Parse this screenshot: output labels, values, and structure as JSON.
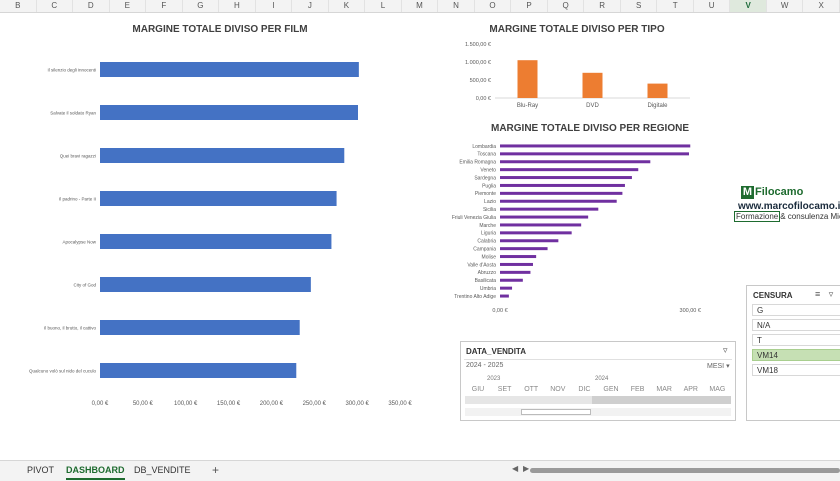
{
  "column_headers": [
    "B",
    "C",
    "D",
    "E",
    "F",
    "G",
    "H",
    "I",
    "J",
    "K",
    "L",
    "M",
    "N",
    "O",
    "P",
    "Q",
    "R",
    "S",
    "T",
    "U",
    "V",
    "W",
    "X"
  ],
  "selected_column": "V",
  "accent_color": "#4472c4",
  "chart_data": [
    {
      "type": "bar",
      "orientation": "horizontal",
      "title": "MARGINE TOTALE DIVISO PER FILM",
      "categories": [
        "Il silenzio degli innocenti",
        "Salvate il soldato Ryan",
        "Quei bravi ragazzi",
        "Il padrino - Parte II",
        "Apocalypse Now",
        "City of God",
        "Il buono, il brutto, il cattivo",
        "Qualcuno volò sul nido del cuculo"
      ],
      "values": [
        302,
        301,
        285,
        276,
        270,
        246,
        233,
        229
      ],
      "xlim": [
        0,
        350
      ],
      "xticks": [
        "0,00 €",
        "50,00 €",
        "100,00 €",
        "150,00 €",
        "200,00 €",
        "250,00 €",
        "300,00 €",
        "350,00 €"
      ],
      "color": "#4472c4"
    },
    {
      "type": "bar",
      "title": "MARGINE TOTALE DIVISO PER TIPO",
      "categories": [
        "Blu-Ray",
        "DVD",
        "Digitale"
      ],
      "values": [
        1050,
        700,
        400
      ],
      "ylim": [
        0,
        1500
      ],
      "yticks": [
        "0,00 €",
        "500,00 €",
        "1.000,00 €",
        "1.500,00 €"
      ],
      "color": "#ed7d31"
    },
    {
      "type": "bar",
      "orientation": "horizontal",
      "title": "MARGINE TOTALE DIVISO PER REGIONE",
      "categories": [
        "Lombardia",
        "Toscana",
        "Emilia Romagna",
        "Veneto",
        "Sardegna",
        "Puglia",
        "Piemonte",
        "Lazio",
        "Sicilia",
        "Friuli Venezia Giulia",
        "Marche",
        "Liguria",
        "Calabria",
        "Campania",
        "Molise",
        "Valle d'Aosta",
        "Abruzzo",
        "Basilicata",
        "Umbria",
        "Trentino Alto Adige"
      ],
      "values": [
        300,
        298,
        237,
        218,
        208,
        197,
        193,
        184,
        155,
        139,
        128,
        113,
        92,
        75,
        57,
        52,
        48,
        36,
        19,
        14
      ],
      "xlim": [
        0,
        380
      ],
      "xticks": [
        "0,00 €",
        "300,00 €"
      ],
      "color": "#7030a0"
    }
  ],
  "logo": {
    "letter": "M",
    "name": "Filocamo",
    "url": "www.marcofilocamo.it",
    "tagline_boxed": "Formazione",
    "tagline_rest": "& consulenza Microsof"
  },
  "slicer": {
    "title": "CENSURA",
    "items": [
      "G",
      "N/A",
      "T",
      "VM14",
      "VM18"
    ],
    "selected": "VM14",
    "selected_color": "#c6e0b4"
  },
  "timeline": {
    "title": "DATA_VENDITA",
    "range": "2024 - 2025",
    "level": "MESI",
    "years": [
      "2023",
      "2024"
    ],
    "months": [
      "GIU",
      "SET",
      "OTT",
      "NOV",
      "DIC",
      "GEN",
      "FEB",
      "MAR",
      "APR",
      "MAG"
    ]
  },
  "sheet_tabs": [
    "PIVOT",
    "DASHBOARD",
    "DB_VENDITE"
  ],
  "active_tab": "DASHBOARD",
  "add_sheet_label": "+"
}
